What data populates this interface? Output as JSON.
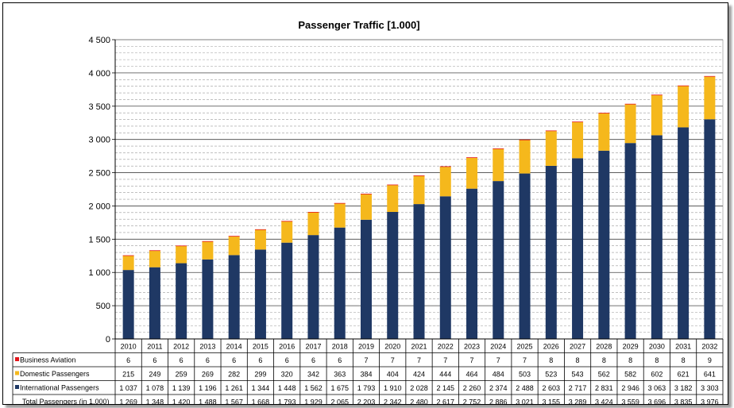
{
  "chart_data": {
    "type": "bar",
    "stacked": true,
    "title": "Passenger Traffic [1.000]",
    "categories": [
      "2010",
      "2011",
      "2012",
      "2013",
      "2014",
      "2015",
      "2016",
      "2017",
      "2018",
      "2019",
      "2020",
      "2021",
      "2022",
      "2023",
      "2024",
      "2025",
      "2026",
      "2027",
      "2028",
      "2029",
      "2030",
      "2031",
      "2032"
    ],
    "ylim": [
      0,
      4500
    ],
    "yticks": [
      0,
      500,
      1000,
      1500,
      2000,
      2500,
      3000,
      3500,
      4000,
      4500
    ],
    "ytick_labels": [
      "0",
      "500",
      "1 000",
      "1 500",
      "2 000",
      "2 500",
      "3 000",
      "3 500",
      "4 000",
      "4 500"
    ],
    "grid": true,
    "series": [
      {
        "name": "International Passengers",
        "color": "#1f3864",
        "values": [
          1037,
          1078,
          1139,
          1196,
          1261,
          1344,
          1448,
          1562,
          1675,
          1793,
          1910,
          2028,
          2145,
          2260,
          2374,
          2488,
          2603,
          2717,
          2831,
          2946,
          3063,
          3182,
          3303
        ],
        "labels": [
          "1 037",
          "1 078",
          "1 139",
          "1 196",
          "1 261",
          "1 344",
          "1 448",
          "1 562",
          "1 675",
          "1 793",
          "1 910",
          "2 028",
          "2 145",
          "2 260",
          "2 374",
          "2 488",
          "2 603",
          "2 717",
          "2 831",
          "2 946",
          "3 063",
          "3 182",
          "3 303"
        ]
      },
      {
        "name": "Domestic Passengers",
        "color": "#f5b81c",
        "values": [
          215,
          249,
          259,
          269,
          282,
          299,
          320,
          342,
          363,
          384,
          404,
          424,
          444,
          464,
          484,
          503,
          523,
          543,
          562,
          582,
          602,
          621,
          641
        ],
        "labels": [
          "215",
          "249",
          "259",
          "269",
          "282",
          "299",
          "320",
          "342",
          "363",
          "384",
          "404",
          "424",
          "444",
          "464",
          "484",
          "503",
          "523",
          "543",
          "562",
          "582",
          "602",
          "621",
          "641"
        ]
      },
      {
        "name": "Business Aviation",
        "color": "#e3161c",
        "values": [
          6,
          6,
          6,
          6,
          6,
          6,
          6,
          6,
          6,
          7,
          7,
          7,
          7,
          7,
          7,
          7,
          8,
          8,
          8,
          8,
          8,
          8,
          9
        ],
        "labels": [
          "6",
          "6",
          "6",
          "6",
          "6",
          "6",
          "6",
          "6",
          "6",
          "7",
          "7",
          "7",
          "7",
          "7",
          "7",
          "7",
          "8",
          "8",
          "8",
          "8",
          "8",
          "8",
          "9"
        ]
      }
    ],
    "table_rows": [
      "Business Aviation",
      "Domestic Passengers",
      "International Passengers"
    ],
    "total": {
      "name": "Total Passengers (in 1.000)",
      "labels": [
        "1 269",
        "1 348",
        "1 420",
        "1 488",
        "1 567",
        "1 668",
        "1 793",
        "1 929",
        "2 065",
        "2 203",
        "2 342",
        "2 480",
        "2 617",
        "2 752",
        "2 886",
        "3 021",
        "3 155",
        "3 289",
        "3 424",
        "3 559",
        "3 696",
        "3 835",
        "3 976"
      ]
    }
  }
}
